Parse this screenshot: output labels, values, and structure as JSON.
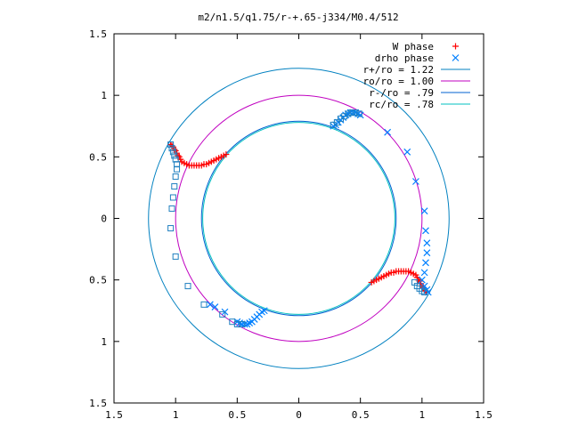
{
  "chart_data": {
    "type": "scatter",
    "title": "m2/n1.5/q1.75/r-+.65-j334/M0.4/512",
    "xlim": [
      -1.5,
      1.5
    ],
    "ylim": [
      -1.5,
      1.5
    ],
    "x_tick_values": [
      -1.5,
      -1,
      -0.5,
      0,
      0.5,
      1,
      1.5
    ],
    "x_tick_labels": [
      "1.5",
      "1",
      "0.5",
      "0",
      "0.5",
      "1",
      "1.5"
    ],
    "y_tick_values": [
      1.5,
      1,
      0.5,
      0,
      -0.5,
      -1,
      -1.5
    ],
    "y_tick_labels": [
      "1.5",
      "1",
      "0.5",
      "0",
      "0.5",
      "1",
      "1.5"
    ],
    "grid": false,
    "legend_position": "top-right",
    "circles": [
      {
        "label": "r+/ro = 1.22",
        "radius": 1.22,
        "color": "#0080c0"
      },
      {
        "label": "ro/ro = 1.00",
        "radius": 1.0,
        "color": "#c000c0"
      },
      {
        "label": "r-/ro = .79",
        "radius": 0.79,
        "color": "#0060d0"
      },
      {
        "label": "rc/ro = .78",
        "radius": 0.78,
        "color": "#00c0c0"
      }
    ],
    "series": [
      {
        "name": "W phase",
        "marker": "+",
        "color": "#ff0000",
        "points": [
          [
            -1.04,
            0.6
          ],
          [
            -1.03,
            0.59
          ],
          [
            -1.02,
            0.58
          ],
          [
            -1.01,
            0.56
          ],
          [
            -1.0,
            0.55
          ],
          [
            -0.99,
            0.53
          ],
          [
            -0.98,
            0.51
          ],
          [
            -0.97,
            0.5
          ],
          [
            -0.96,
            0.48
          ],
          [
            -0.95,
            0.46
          ],
          [
            -0.93,
            0.45
          ],
          [
            -0.91,
            0.44
          ],
          [
            -0.89,
            0.43
          ],
          [
            -0.87,
            0.43
          ],
          [
            -0.85,
            0.43
          ],
          [
            -0.83,
            0.43
          ],
          [
            -0.81,
            0.43
          ],
          [
            -0.79,
            0.43
          ],
          [
            -0.77,
            0.44
          ],
          [
            -0.75,
            0.44
          ],
          [
            -0.73,
            0.45
          ],
          [
            -0.71,
            0.46
          ],
          [
            -0.69,
            0.47
          ],
          [
            -0.67,
            0.48
          ],
          [
            -0.65,
            0.49
          ],
          [
            -0.63,
            0.5
          ],
          [
            -0.61,
            0.51
          ],
          [
            -0.59,
            0.52
          ],
          [
            0.59,
            -0.52
          ],
          [
            0.61,
            -0.51
          ],
          [
            0.63,
            -0.5
          ],
          [
            0.65,
            -0.49
          ],
          [
            0.67,
            -0.48
          ],
          [
            0.69,
            -0.47
          ],
          [
            0.71,
            -0.46
          ],
          [
            0.73,
            -0.45
          ],
          [
            0.75,
            -0.44
          ],
          [
            0.77,
            -0.44
          ],
          [
            0.79,
            -0.43
          ],
          [
            0.81,
            -0.43
          ],
          [
            0.83,
            -0.43
          ],
          [
            0.85,
            -0.43
          ],
          [
            0.87,
            -0.43
          ],
          [
            0.89,
            -0.43
          ],
          [
            0.91,
            -0.44
          ],
          [
            0.93,
            -0.45
          ],
          [
            0.95,
            -0.46
          ],
          [
            0.96,
            -0.48
          ],
          [
            0.97,
            -0.5
          ],
          [
            0.98,
            -0.51
          ],
          [
            0.99,
            -0.53
          ],
          [
            1.0,
            -0.55
          ],
          [
            1.01,
            -0.56
          ],
          [
            1.02,
            -0.58
          ],
          [
            1.03,
            -0.59
          ],
          [
            1.04,
            -0.6
          ]
        ]
      },
      {
        "name": "drho phase",
        "marker": "x",
        "color": "#0080ff",
        "points": [
          [
            0.28,
            0.75
          ],
          [
            0.3,
            0.76
          ],
          [
            0.32,
            0.78
          ],
          [
            0.34,
            0.8
          ],
          [
            0.36,
            0.82
          ],
          [
            0.38,
            0.84
          ],
          [
            0.4,
            0.85
          ],
          [
            0.42,
            0.86
          ],
          [
            0.44,
            0.86
          ],
          [
            0.46,
            0.86
          ],
          [
            0.48,
            0.85
          ],
          [
            0.5,
            0.84
          ],
          [
            0.72,
            0.7
          ],
          [
            0.88,
            0.54
          ],
          [
            0.95,
            0.3
          ],
          [
            1.02,
            0.06
          ],
          [
            1.03,
            -0.1
          ],
          [
            1.04,
            -0.2
          ],
          [
            1.04,
            -0.28
          ],
          [
            1.03,
            -0.36
          ],
          [
            1.02,
            -0.44
          ],
          [
            1.0,
            -0.5
          ],
          [
            1.02,
            -0.55
          ],
          [
            1.04,
            -0.58
          ],
          [
            1.05,
            -0.6
          ],
          [
            -0.28,
            -0.75
          ],
          [
            -0.3,
            -0.76
          ],
          [
            -0.32,
            -0.78
          ],
          [
            -0.34,
            -0.8
          ],
          [
            -0.36,
            -0.82
          ],
          [
            -0.38,
            -0.84
          ],
          [
            -0.4,
            -0.85
          ],
          [
            -0.42,
            -0.86
          ],
          [
            -0.44,
            -0.86
          ],
          [
            -0.46,
            -0.86
          ],
          [
            -0.48,
            -0.85
          ],
          [
            -0.5,
            -0.84
          ],
          [
            -0.6,
            -0.76
          ],
          [
            -0.68,
            -0.72
          ],
          [
            -0.72,
            -0.7
          ]
        ]
      },
      {
        "name": "",
        "marker": "square",
        "color": "#2080c0",
        "points": [
          [
            0.28,
            0.76
          ],
          [
            0.31,
            0.78
          ],
          [
            0.34,
            0.81
          ],
          [
            0.37,
            0.83
          ],
          [
            0.4,
            0.85
          ],
          [
            0.43,
            0.86
          ],
          [
            0.46,
            0.86
          ],
          [
            0.49,
            0.85
          ],
          [
            0.94,
            -0.52
          ],
          [
            0.96,
            -0.55
          ],
          [
            0.98,
            -0.57
          ],
          [
            1.0,
            -0.59
          ],
          [
            1.02,
            -0.6
          ],
          [
            -1.04,
            0.6
          ],
          [
            -1.03,
            0.57
          ],
          [
            -1.02,
            0.54
          ],
          [
            -1.01,
            0.51
          ],
          [
            -1.0,
            0.48
          ],
          [
            -0.99,
            0.44
          ],
          [
            -0.99,
            0.4
          ],
          [
            -1.0,
            0.34
          ],
          [
            -1.01,
            0.26
          ],
          [
            -1.02,
            0.17
          ],
          [
            -1.03,
            0.08
          ],
          [
            -1.04,
            -0.08
          ],
          [
            -1.0,
            -0.31
          ],
          [
            -0.9,
            -0.55
          ],
          [
            -0.77,
            -0.7
          ],
          [
            -0.62,
            -0.78
          ],
          [
            -0.54,
            -0.84
          ],
          [
            -0.5,
            -0.86
          ],
          [
            -0.46,
            -0.86
          ]
        ]
      }
    ]
  }
}
